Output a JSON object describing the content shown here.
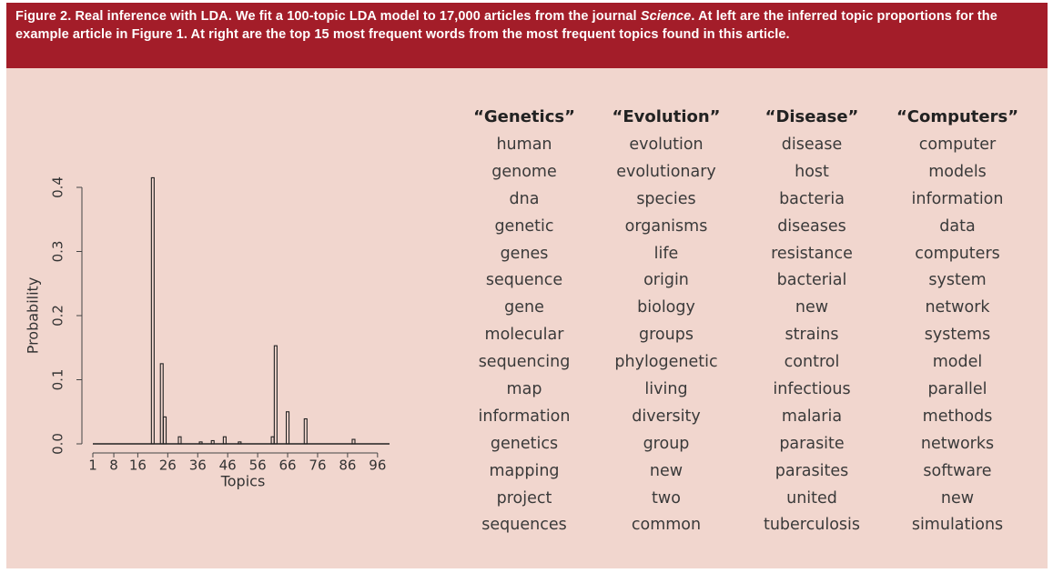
{
  "caption": {
    "part1": "Figure 2. Real inference with LDA. We fit a 100-topic LDA model to 17,000 articles from the journal ",
    "journal": "Science",
    "part2": ". At left are the inferred topic proportions for the example article in Figure 1. At right are the top 15 most frequent words from the most frequent topics found in this article."
  },
  "colors": {
    "caption_bg": "#a31d29",
    "panel_bg": "#f1d6ce",
    "bar": "#222222"
  },
  "chart_data": {
    "type": "bar",
    "xlabel": "Topics",
    "ylabel": "Probability",
    "xlim": [
      1,
      100
    ],
    "ylim": [
      0,
      0.42
    ],
    "xticks": [
      1,
      8,
      16,
      26,
      36,
      46,
      56,
      66,
      76,
      86,
      96
    ],
    "yticks": [
      0.0,
      0.1,
      0.2,
      0.3,
      0.4
    ],
    "ytick_labels": [
      "0.0",
      "0.1",
      "0.2",
      "0.3",
      "0.4"
    ],
    "points": [
      {
        "topic": 21,
        "value": 0.415
      },
      {
        "topic": 24,
        "value": 0.125
      },
      {
        "topic": 25,
        "value": 0.042
      },
      {
        "topic": 30,
        "value": 0.011
      },
      {
        "topic": 37,
        "value": 0.003
      },
      {
        "topic": 41,
        "value": 0.005
      },
      {
        "topic": 45,
        "value": 0.011
      },
      {
        "topic": 50,
        "value": 0.003
      },
      {
        "topic": 61,
        "value": 0.011
      },
      {
        "topic": 62,
        "value": 0.153
      },
      {
        "topic": 66,
        "value": 0.05
      },
      {
        "topic": 72,
        "value": 0.039
      },
      {
        "topic": 88,
        "value": 0.007
      }
    ]
  },
  "topics": [
    {
      "title": "“Genetics”",
      "words": [
        "human",
        "genome",
        "dna",
        "genetic",
        "genes",
        "sequence",
        "gene",
        "molecular",
        "sequencing",
        "map",
        "information",
        "genetics",
        "mapping",
        "project",
        "sequences"
      ]
    },
    {
      "title": "“Evolution”",
      "words": [
        "evolution",
        "evolutionary",
        "species",
        "organisms",
        "life",
        "origin",
        "biology",
        "groups",
        "phylogenetic",
        "living",
        "diversity",
        "group",
        "new",
        "two",
        "common"
      ]
    },
    {
      "title": "“Disease”",
      "words": [
        "disease",
        "host",
        "bacteria",
        "diseases",
        "resistance",
        "bacterial",
        "new",
        "strains",
        "control",
        "infectious",
        "malaria",
        "parasite",
        "parasites",
        "united",
        "tuberculosis"
      ]
    },
    {
      "title": "“Computers”",
      "words": [
        "computer",
        "models",
        "information",
        "data",
        "computers",
        "system",
        "network",
        "systems",
        "model",
        "parallel",
        "methods",
        "networks",
        "software",
        "new",
        "simulations"
      ]
    }
  ]
}
